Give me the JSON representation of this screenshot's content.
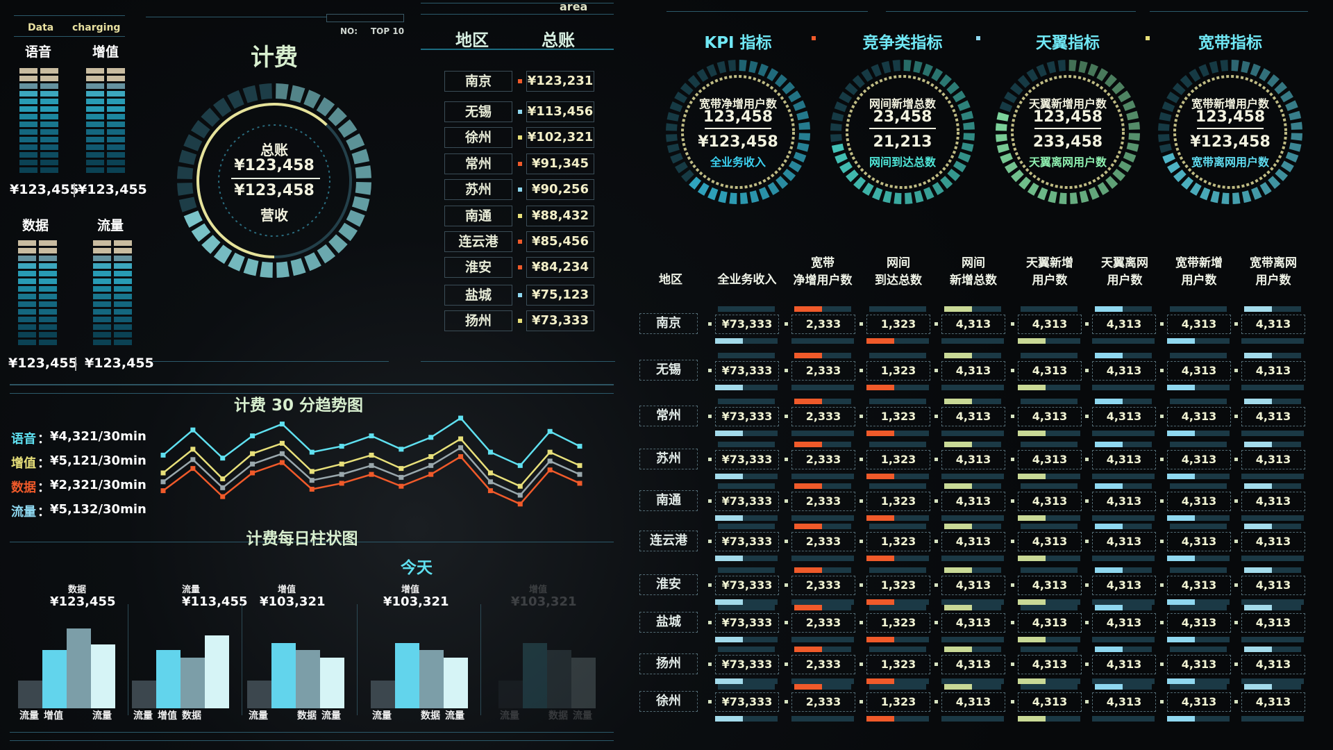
{
  "colors": {
    "accent": "#5fe0f0",
    "yellow": "#e8e07a",
    "orange": "#f05a2a",
    "gray": "#9aa8ad",
    "paleGreen": "#c9d996",
    "lightBlue": "#8fd8f0"
  },
  "top_left": {
    "tab1": "Data",
    "tab2": "charging",
    "rank_label": "NO:",
    "rank_value": "TOP 10",
    "area_label": "area"
  },
  "meters": [
    {
      "label": "语音",
      "value": "¥123,455"
    },
    {
      "label": "增值",
      "value": "¥123,455"
    },
    {
      "label": "数据",
      "value": "¥123,455"
    },
    {
      "label": "流量",
      "value": "¥123,455"
    }
  ],
  "billing": {
    "title": "计费",
    "line1": "总账",
    "value1": "¥123,458",
    "value2": "¥123,458",
    "line2": "营收",
    "progress_pct": 68
  },
  "region_table": {
    "headers": [
      "地区",
      "总账"
    ],
    "rows": [
      {
        "name": "南京",
        "value": "¥123,231",
        "dot": "#f05a2a"
      },
      {
        "name": "无锡",
        "value": "¥113,456",
        "dot": "#8fd8f0"
      },
      {
        "name": "徐州",
        "value": "¥102,321",
        "dot": "#e8e07a"
      },
      {
        "name": "常州",
        "value": "¥91,345",
        "dot": "#f05a2a"
      },
      {
        "name": "苏州",
        "value": "¥90,256",
        "dot": "#8fd8f0"
      },
      {
        "name": "南通",
        "value": "¥88,432",
        "dot": "#e8e07a"
      },
      {
        "name": "连云港",
        "value": "¥85,456",
        "dot": "#f05a2a"
      },
      {
        "name": "淮安",
        "value": "¥84,234",
        "dot": "#f05a2a"
      },
      {
        "name": "盐城",
        "value": "¥75,123",
        "dot": "#8fd8f0"
      },
      {
        "name": "扬州",
        "value": "¥73,333",
        "dot": "#e8e07a"
      }
    ]
  },
  "trend": {
    "title": "计费 30 分趋势图",
    "legend": [
      {
        "label": "语音",
        "value": "¥4,321/30min",
        "color": "#5fe0f0"
      },
      {
        "label": "增值",
        "value": "¥5,121/30min",
        "color": "#e8e07a"
      },
      {
        "label": "数据",
        "value": "¥2,321/30min",
        "color": "#f05a2a"
      },
      {
        "label": "流量",
        "value": "¥5,132/30min",
        "color": "#8fd8f0"
      }
    ]
  },
  "chart_data": [
    {
      "type": "line",
      "title": "计费 30 分趋势图",
      "x": [
        1,
        2,
        3,
        4,
        5,
        6,
        7,
        8,
        9,
        10,
        11,
        12,
        13,
        14,
        15
      ],
      "series": [
        {
          "values": [
            62,
            79,
            60,
            75,
            83,
            64,
            68,
            75,
            66,
            74,
            87,
            64,
            55,
            78,
            68
          ],
          "color": "#5fe0f0"
        },
        {
          "values": [
            50,
            66,
            46,
            63,
            70,
            51,
            56,
            62,
            53,
            61,
            73,
            50,
            41,
            64,
            55
          ],
          "color": "#e8e07a"
        },
        {
          "values": [
            44,
            59,
            40,
            56,
            63,
            45,
            49,
            55,
            47,
            55,
            67,
            44,
            35,
            58,
            49
          ],
          "color": "#9aa8ad"
        },
        {
          "values": [
            38,
            53,
            34,
            50,
            57,
            39,
            43,
            49,
            41,
            49,
            61,
            38,
            29,
            52,
            43
          ],
          "color": "#f05a2a"
        }
      ]
    },
    {
      "type": "bar",
      "title": "计费每日柱状图",
      "groups": [
        {
          "label": "数据",
          "value": "¥123,455",
          "values": [
            30,
            62,
            85,
            68
          ],
          "categories": [
            "流量",
            "增值",
            "",
            "流量"
          ]
        },
        {
          "label": "流量",
          "value": "¥113,455",
          "values": [
            30,
            62,
            54,
            78
          ],
          "categories": [
            "流量",
            "增值",
            "数据",
            ""
          ]
        },
        {
          "label": "增值",
          "value": "¥103,321",
          "values": [
            30,
            70,
            62,
            54
          ],
          "categories": [
            "流量",
            "",
            "数据",
            "流量"
          ]
        },
        {
          "label": "增值",
          "value": "¥103,321",
          "values": [
            30,
            70,
            62,
            54
          ],
          "categories": [
            "流量",
            "",
            "数据",
            "流量"
          ]
        },
        {
          "label": "增值",
          "value": "¥103,321",
          "values": [
            30,
            70,
            62,
            54
          ],
          "categories": [
            "流量",
            "",
            "数据",
            "流量"
          ]
        }
      ]
    }
  ],
  "daily": {
    "title": "计费每日柱状图",
    "today": "今天"
  },
  "gauges": [
    {
      "title": "KPI 指标",
      "top": "宽带净增用户数",
      "v1": "123,458",
      "v2": "¥123,458",
      "bottom": "全业务收入",
      "color": "#3bd0f0",
      "progress_pct": 62
    },
    {
      "title": "竞争类指标",
      "top": "网间新增总数",
      "v1": "23,458",
      "v2": "21,213",
      "bottom": "网间到达总数",
      "color": "#4fe6d8",
      "progress_pct": 72
    },
    {
      "title": "天翼指标",
      "top": "天翼新增用户数",
      "v1": "123,458",
      "v2": "233,458",
      "bottom": "天翼离网用户数",
      "color": "#8ef0b0",
      "progress_pct": 80
    },
    {
      "title": "宽带指标",
      "top": "宽带新增用户数",
      "v1": "123,458",
      "v2": "¥123,458",
      "bottom": "宽带离网用户数",
      "color": "#5fdcf0",
      "progress_pct": 70
    }
  ],
  "big_table": {
    "headers": [
      [
        "地区"
      ],
      [
        "全业务收入"
      ],
      [
        "宽带",
        "净增用户数"
      ],
      [
        "网间",
        "到达总数"
      ],
      [
        "网间",
        "新增总数"
      ],
      [
        "天翼新增",
        "用户数"
      ],
      [
        "天翼离网",
        "用户数"
      ],
      [
        "宽带新增",
        "用户数"
      ],
      [
        "宽带离网",
        "用户数"
      ]
    ],
    "rows": [
      {
        "name": "南京",
        "values": [
          "¥73,333",
          "2,333",
          "1,323",
          "4,313",
          "4,313",
          "4,313",
          "4,313",
          "4,313"
        ]
      },
      {
        "name": "无锡",
        "values": [
          "¥73,333",
          "2,333",
          "1,323",
          "4,313",
          "4,313",
          "4,313",
          "4,313",
          "4,313"
        ]
      },
      {
        "name": "常州",
        "values": [
          "¥73,333",
          "2,333",
          "1,323",
          "4,313",
          "4,313",
          "4,313",
          "4,313",
          "4,313"
        ]
      },
      {
        "name": "苏州",
        "values": [
          "¥73,333",
          "2,333",
          "1,323",
          "4,313",
          "4,313",
          "4,313",
          "4,313",
          "4,313"
        ]
      },
      {
        "name": "南通",
        "values": [
          "¥73,333",
          "2,333",
          "1,323",
          "4,313",
          "4,313",
          "4,313",
          "4,313",
          "4,313"
        ]
      },
      {
        "name": "连云港",
        "values": [
          "¥73,333",
          "2,333",
          "1,323",
          "4,313",
          "4,313",
          "4,313",
          "4,313",
          "4,313"
        ]
      },
      {
        "name": "淮安",
        "values": [
          "¥73,333",
          "2,333",
          "1,323",
          "4,313",
          "4,313",
          "4,313",
          "4,313",
          "4,313"
        ]
      },
      {
        "name": "盐城",
        "values": [
          "¥73,333",
          "2,333",
          "1,323",
          "4,313",
          "4,313",
          "4,313",
          "4,313",
          "4,313"
        ]
      },
      {
        "name": "扬州",
        "values": [
          "¥73,333",
          "2,333",
          "1,323",
          "4,313",
          "4,313",
          "4,313",
          "4,313",
          "4,313"
        ]
      },
      {
        "name": "徐州",
        "values": [
          "¥73,333",
          "2,333",
          "1,323",
          "4,313",
          "4,313",
          "4,313",
          "4,313",
          "4,313"
        ]
      }
    ]
  }
}
